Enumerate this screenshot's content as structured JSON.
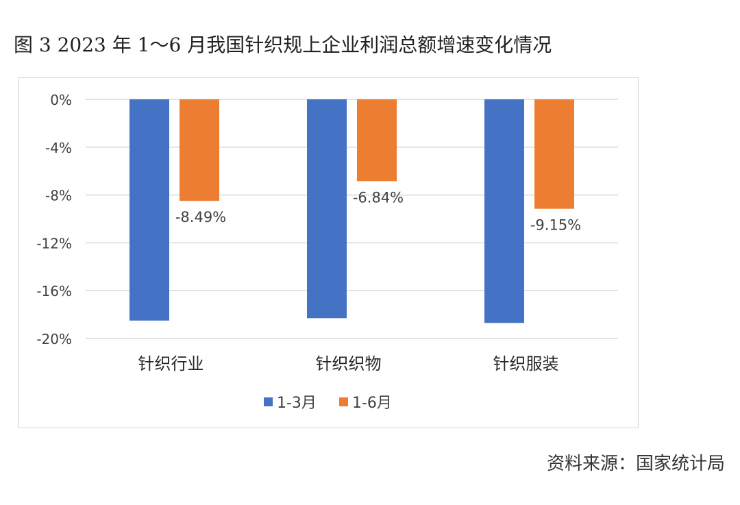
{
  "figure": {
    "title": "图 3   2023 年 1～6 月我国针织规上企业利润总额增速变化情况",
    "source": "资料来源：国家统计局"
  },
  "chart_data": {
    "type": "bar",
    "title": "",
    "xlabel": "",
    "ylabel": "",
    "categories": [
      "针织行业",
      "针织织物",
      "针织服装"
    ],
    "series": [
      {
        "name": "1-3月",
        "color": "#4472c4",
        "values": [
          -18.5,
          -18.3,
          -18.7
        ],
        "labels": [
          null,
          null,
          null
        ]
      },
      {
        "name": "1-6月",
        "color": "#ed7d31",
        "values": [
          -8.49,
          -6.84,
          -9.15
        ],
        "labels": [
          "-8.49%",
          "-6.84%",
          "-9.15%"
        ]
      }
    ],
    "ylim": [
      -20,
      0
    ],
    "yticks": [
      0,
      -4,
      -8,
      -12,
      -16,
      -20
    ],
    "ytick_labels": [
      "0%",
      "-4%",
      "-8%",
      "-12%",
      "-16%",
      "-20%"
    ],
    "grid": true,
    "legend": "bottom",
    "colors": {
      "gridline": "#d9d9d9",
      "text": "#404040"
    }
  }
}
